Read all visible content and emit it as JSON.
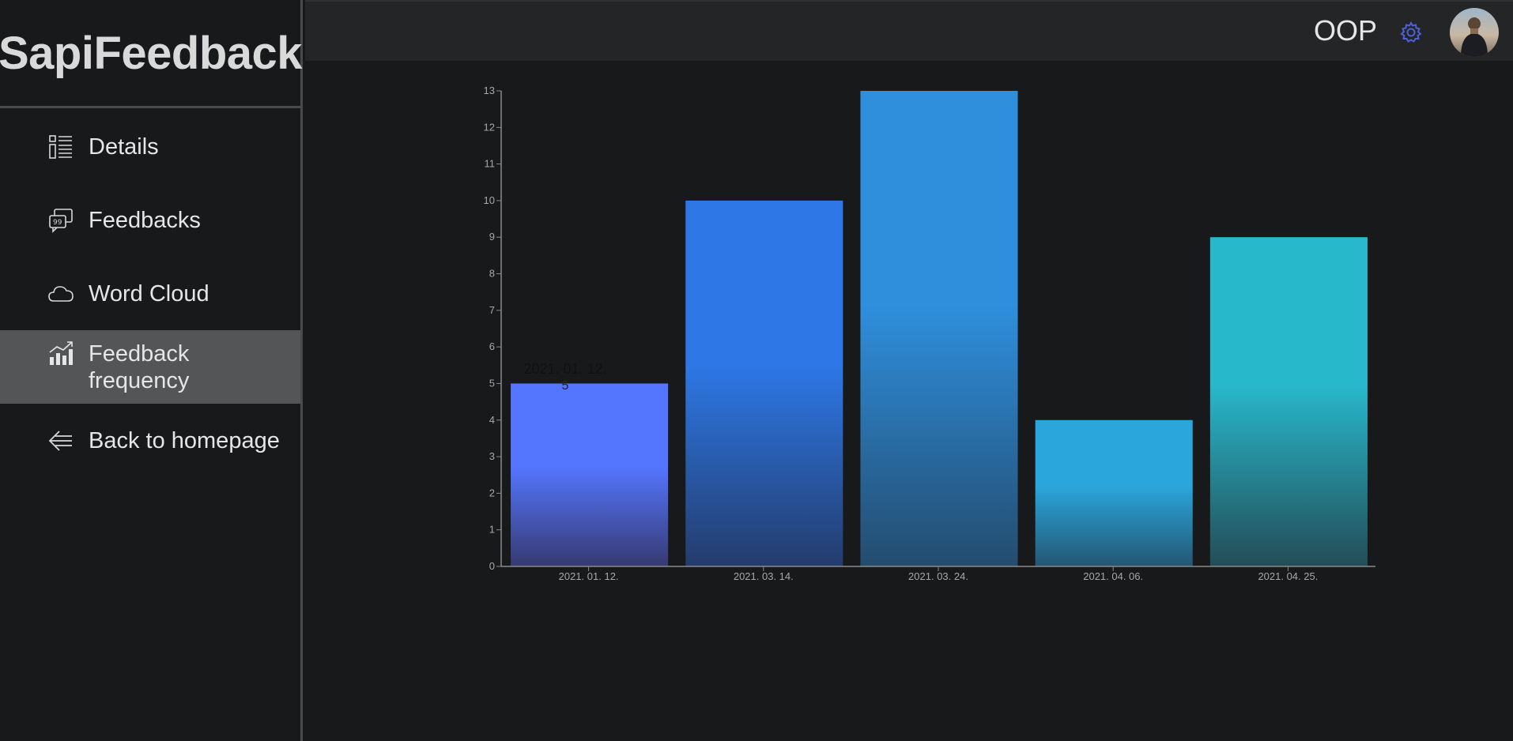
{
  "sidebar": {
    "brand": "SapiFeedback",
    "items": [
      {
        "label": "Details",
        "icon": "details-icon"
      },
      {
        "label": "Feedbacks",
        "icon": "feedbacks-icon"
      },
      {
        "label": "Word Cloud",
        "icon": "cloud-icon"
      },
      {
        "label": "Feedback frequency",
        "icon": "chart-icon",
        "active": true
      },
      {
        "label": "Back to homepage",
        "icon": "back-arrow-icon"
      }
    ]
  },
  "header": {
    "course": "OOP",
    "settings_icon": "gear-icon",
    "avatar_icon": "avatar"
  },
  "chart_data": {
    "type": "bar",
    "categories": [
      "2021. 01. 12.",
      "2021. 03. 14.",
      "2021. 03. 24.",
      "2021. 04. 06.",
      "2021. 04. 25."
    ],
    "values": [
      5,
      10,
      13,
      4,
      9
    ],
    "ylim": [
      0,
      13
    ],
    "yticks": [
      0,
      1,
      2,
      3,
      4,
      5,
      6,
      7,
      8,
      9,
      10,
      11,
      12,
      13
    ],
    "colors": [
      [
        "#5476ff",
        "#373a72"
      ],
      [
        "#2d78e6",
        "#243c6c"
      ],
      [
        "#2f8fdd",
        "#244c6e"
      ],
      [
        "#2aa6dc",
        "#245673"
      ],
      [
        "#28b8cb",
        "#234d56"
      ]
    ],
    "tooltip": {
      "label": "2021. 01. 12.",
      "value": "5"
    }
  }
}
